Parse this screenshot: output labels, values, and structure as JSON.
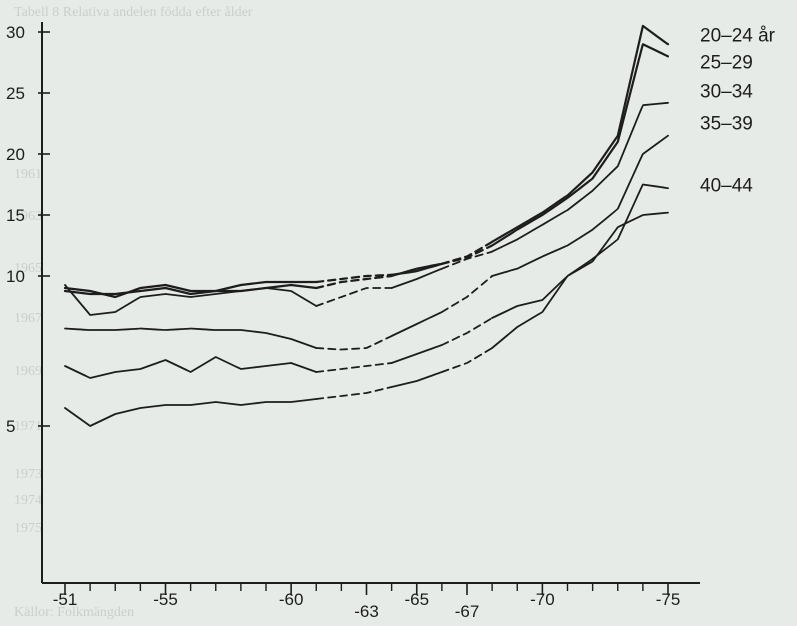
{
  "chart_data": {
    "type": "line",
    "title": "",
    "xlabel": "",
    "ylabel": "",
    "xlim": [
      1951,
      1975
    ],
    "ylim": [
      0,
      31
    ],
    "y_scale_note": "piecewise: 5 to 10 and 10 to 30 drawn at different scales (as printed)",
    "grid": false,
    "x_ticks": [
      {
        "x": 1951,
        "label": "-51"
      },
      {
        "x": 1955,
        "label": "-55"
      },
      {
        "x": 1960,
        "label": "-60"
      },
      {
        "x": 1963,
        "label": "-63"
      },
      {
        "x": 1965,
        "label": "-65"
      },
      {
        "x": 1967,
        "label": "-67"
      },
      {
        "x": 1970,
        "label": "-70"
      },
      {
        "x": 1975,
        "label": "-75"
      }
    ],
    "x_minor_ticks": [
      1952,
      1953,
      1954,
      1956,
      1957,
      1958,
      1959,
      1961,
      1962,
      1964,
      1966,
      1968,
      1969,
      1971,
      1972,
      1973,
      1974
    ],
    "y_ticks": [
      {
        "y": 5,
        "label": "5"
      },
      {
        "y": 10,
        "label": "10"
      },
      {
        "y": 15,
        "label": "15"
      },
      {
        "y": 20,
        "label": "20"
      },
      {
        "y": 25,
        "label": "25"
      },
      {
        "y": 30,
        "label": "30"
      }
    ],
    "x": [
      1951,
      1952,
      1953,
      1954,
      1955,
      1956,
      1957,
      1958,
      1959,
      1960,
      1961,
      1962,
      1963,
      1964,
      1965,
      1966,
      1967,
      1968,
      1969,
      1970,
      1971,
      1972,
      1973,
      1974,
      1975
    ],
    "dashed_segments": [
      [
        1961,
        1964
      ],
      [
        1966,
        1968
      ]
    ],
    "series": [
      {
        "name": "20–24 år",
        "label_y": 29.8,
        "values": [
          9.6,
          9.5,
          9.3,
          9.6,
          9.7,
          9.5,
          9.5,
          9.7,
          9.8,
          9.8,
          9.8,
          9.9,
          10.0,
          10.1,
          10.4,
          11.0,
          11.6,
          12.8,
          14.0,
          15.2,
          16.6,
          18.5,
          21.5,
          30.5,
          29.0
        ]
      },
      {
        "name": "25–29",
        "label_y": 27.6,
        "values": [
          9.5,
          9.4,
          9.4,
          9.5,
          9.6,
          9.4,
          9.5,
          9.5,
          9.6,
          9.7,
          9.6,
          9.8,
          9.9,
          10.0,
          10.6,
          11.0,
          11.5,
          12.5,
          13.8,
          15.0,
          16.4,
          18.0,
          21.0,
          29.0,
          28.0
        ]
      },
      {
        "name": "30–34",
        "label_y": 25.2,
        "values": [
          9.7,
          8.7,
          8.8,
          9.3,
          9.4,
          9.3,
          9.4,
          9.5,
          9.6,
          9.5,
          9.0,
          9.3,
          9.6,
          9.6,
          9.9,
          10.6,
          11.4,
          12.0,
          13.0,
          14.2,
          15.4,
          17.0,
          19.0,
          24.0,
          24.2
        ]
      },
      {
        "name": "35–39",
        "label_y": 22.6,
        "values": [
          8.25,
          8.2,
          8.2,
          8.25,
          8.2,
          8.25,
          8.2,
          8.2,
          8.1,
          7.9,
          7.6,
          7.55,
          7.6,
          8.0,
          8.4,
          8.8,
          9.3,
          10.0,
          10.6,
          11.6,
          12.5,
          13.8,
          15.5,
          20.0,
          21.5
        ]
      },
      {
        "name": "40–44",
        "label_y": 17.5,
        "values": [
          7.0,
          6.6,
          6.8,
          6.9,
          7.2,
          6.8,
          7.3,
          6.9,
          7.0,
          7.1,
          6.8,
          6.9,
          7.0,
          7.1,
          7.4,
          7.7,
          8.1,
          8.6,
          9.0,
          9.2,
          10.0,
          11.4,
          13.0,
          17.5,
          17.2
        ]
      },
      {
        "name": "",
        "values": [
          5.6,
          5.0,
          5.4,
          5.6,
          5.7,
          5.7,
          5.8,
          5.7,
          5.8,
          5.8,
          5.9,
          6.0,
          6.1,
          6.3,
          6.5,
          6.8,
          7.1,
          7.6,
          8.3,
          8.8,
          10.0,
          11.2,
          14.0,
          15.0,
          15.2
        ]
      }
    ]
  },
  "background_table": {
    "title": "Tabell 8 Relativa andelen födda efter ålder",
    "rows": [
      "1961",
      "1963",
      "1965",
      "1967",
      "1969",
      "1971",
      "1973",
      "1974",
      "1975"
    ],
    "footnote": "Källor: Folkmängden"
  }
}
